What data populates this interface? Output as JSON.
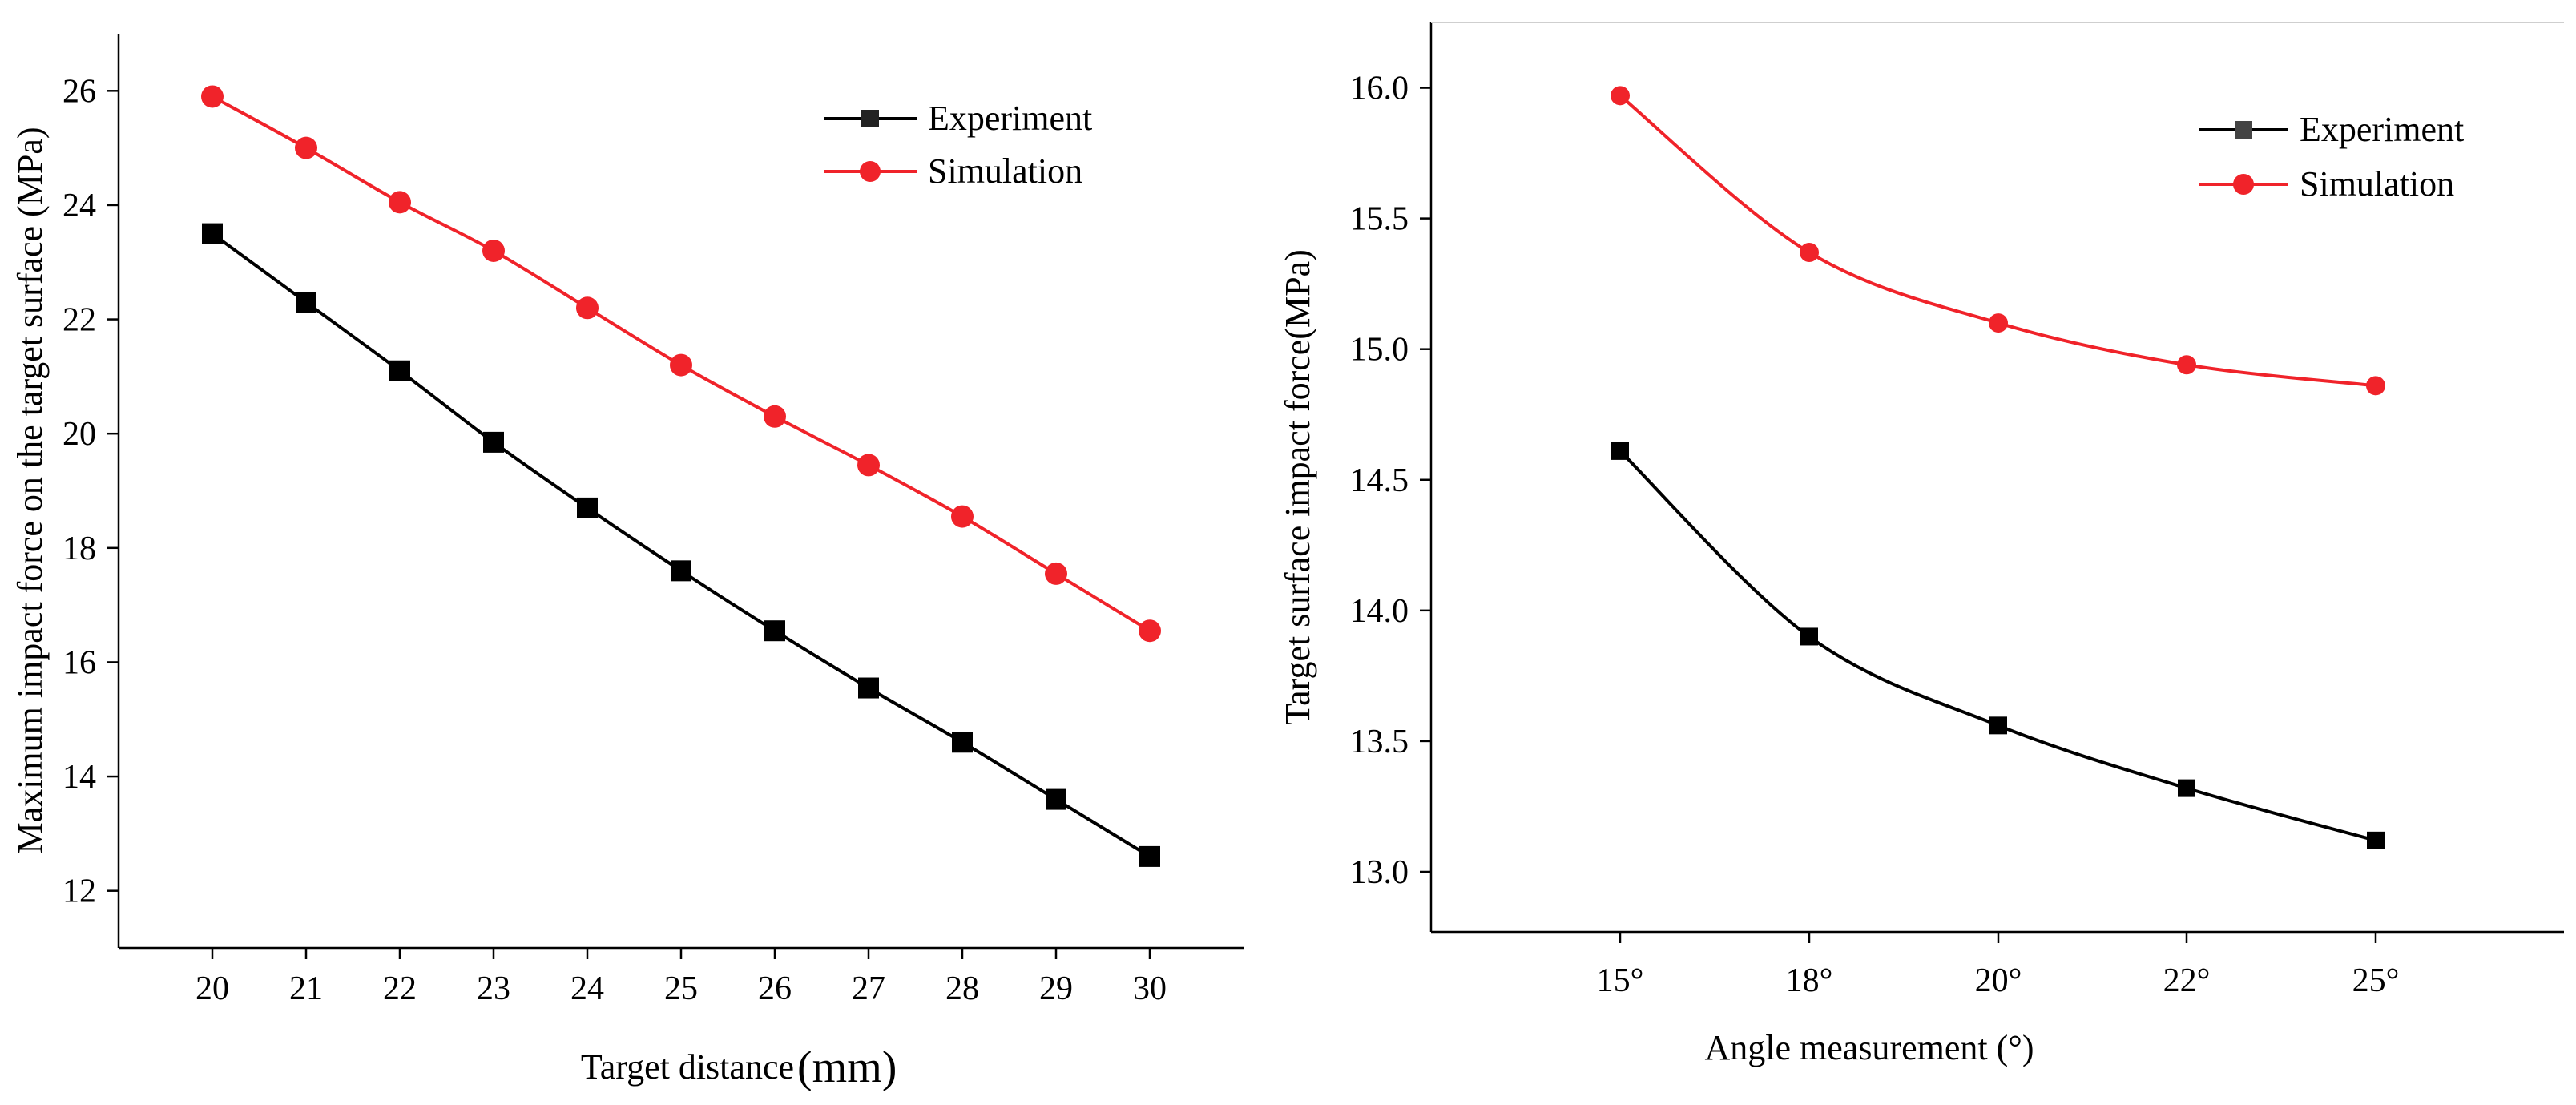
{
  "chart_data": [
    {
      "type": "line",
      "title": "",
      "xlabel": "Target distance",
      "xlabel_unit": "(mm)",
      "ylabel": "Maximum impact force on the target surface (MPa)",
      "categories": [
        "20",
        "21",
        "22",
        "23",
        "24",
        "25",
        "26",
        "27",
        "28",
        "29",
        "30"
      ],
      "x": [
        20,
        21,
        22,
        23,
        24,
        25,
        26,
        27,
        28,
        29,
        30
      ],
      "xlim": [
        19,
        31
      ],
      "ylim": [
        11,
        27
      ],
      "yticks": [
        12,
        14,
        16,
        18,
        20,
        22,
        24,
        26
      ],
      "legend_position": "top-right",
      "series": [
        {
          "name": "Experiment",
          "color": "#000000",
          "marker": "square",
          "values": [
            23.5,
            22.3,
            21.1,
            19.85,
            18.7,
            17.6,
            16.55,
            15.55,
            14.6,
            13.6,
            12.6
          ]
        },
        {
          "name": "Simulation",
          "color": "#f0232a",
          "marker": "circle",
          "values": [
            25.9,
            25.0,
            24.05,
            23.2,
            22.2,
            21.2,
            20.3,
            19.45,
            18.55,
            17.55,
            16.55
          ]
        }
      ]
    },
    {
      "type": "line",
      "title": "",
      "xlabel": "Angle measurement (°)",
      "ylabel": "Target surface impact force(MPa)",
      "categories": [
        "15°",
        "18°",
        "20°",
        "22°",
        "25°"
      ],
      "ylim": [
        12.77,
        16.25
      ],
      "yticks": [
        "13.0",
        "13.5",
        "14.0",
        "14.5",
        "15.0",
        "15.5",
        "16.0"
      ],
      "legend_position": "top-right",
      "series": [
        {
          "name": "Experiment",
          "color": "#000000",
          "marker": "square",
          "values": [
            14.61,
            13.9,
            13.56,
            13.32,
            13.12
          ]
        },
        {
          "name": "Simulation",
          "color": "#f0232a",
          "marker": "circle",
          "values": [
            15.97,
            15.37,
            15.1,
            14.94,
            14.86
          ]
        }
      ]
    }
  ]
}
